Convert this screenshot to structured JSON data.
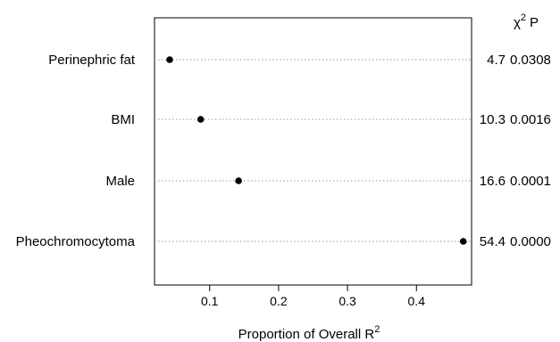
{
  "chart_data": {
    "type": "scatter",
    "title": "",
    "xlabel": "Proportion of Overall R",
    "xlabel_superscript": "2",
    "xlim": [
      0.02,
      0.48
    ],
    "xticks": [
      "0.1",
      "0.2",
      "0.3",
      "0.4"
    ],
    "xtick_values": [
      0.1,
      0.2,
      0.3,
      0.4
    ],
    "grid": "dotted horizontal guide per row",
    "columns": {
      "chi": "χ",
      "chi_superscript": "2",
      "p": "P"
    },
    "rows": [
      {
        "label": "Perinephric fat",
        "x": 0.042,
        "chi2": "4.7",
        "p": "0.0308"
      },
      {
        "label": "BMI",
        "x": 0.087,
        "chi2": "10.3",
        "p": "0.0016"
      },
      {
        "label": "Male",
        "x": 0.142,
        "chi2": "16.6",
        "p": "0.0001"
      },
      {
        "label": "Pheochromocytoma",
        "x": 0.468,
        "chi2": "54.4",
        "p": "0.0000"
      }
    ]
  }
}
